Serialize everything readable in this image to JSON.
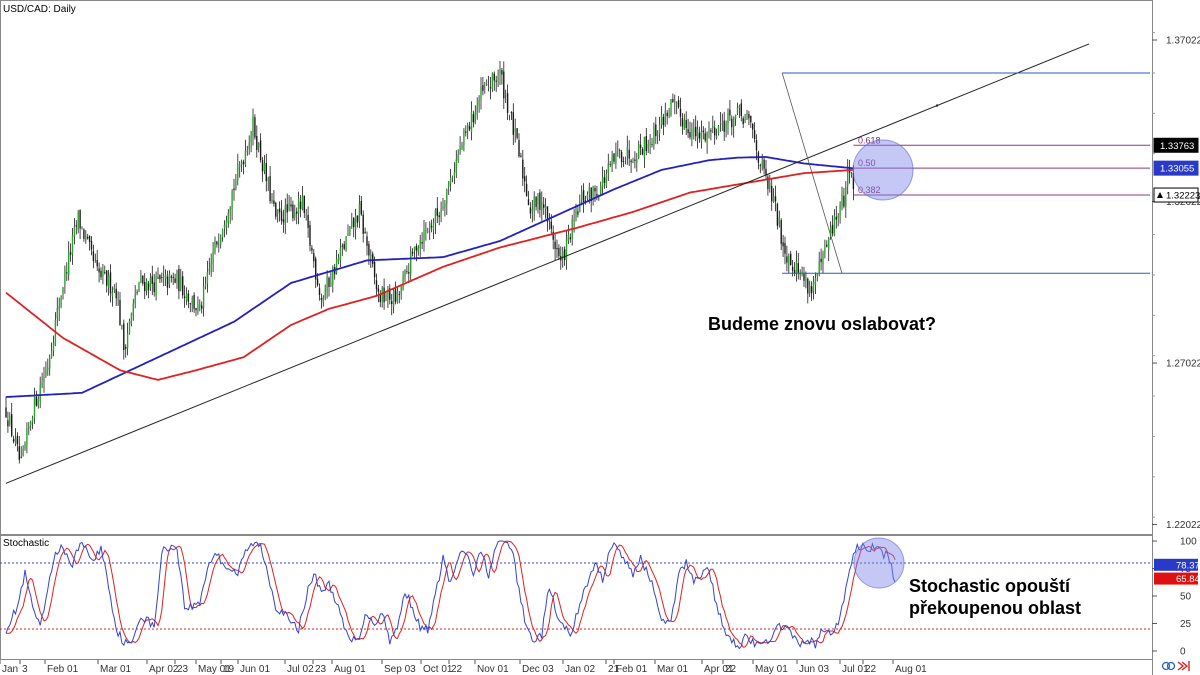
{
  "chart_data": [
    {
      "type": "candlestick",
      "title": "USD/CAD: Daily",
      "y_ticks": [
        "1.37022",
        "1.32022",
        "1.27022",
        "1.22022"
      ],
      "ylim": [
        1.2173,
        1.3826
      ],
      "x_ticks": [
        "Jan",
        "3",
        "Feb 01",
        "Mar 01",
        "Apr 02",
        "23",
        "May 01",
        "19",
        "Jun 01",
        "Jul 02",
        "23",
        "Aug 01",
        "Sep 03",
        "Oct 01",
        "22",
        "Nov 01",
        "Dec 03",
        "Jan 02",
        "21",
        "Feb 01",
        "Mar 01",
        "Apr 01",
        "22",
        "May 01",
        "Jun 03",
        "Jul 01",
        "22",
        "Aug 01"
      ],
      "price_anchors": [
        [
          0,
          1.2558
        ],
        [
          8,
          1.238
        ],
        [
          14,
          1.256
        ],
        [
          22,
          1.27
        ],
        [
          30,
          1.295
        ],
        [
          38,
          1.315
        ],
        [
          48,
          1.298
        ],
        [
          58,
          1.293
        ],
        [
          62,
          1.275
        ],
        [
          70,
          1.295
        ],
        [
          80,
          1.295
        ],
        [
          90,
          1.296
        ],
        [
          102,
          1.286
        ],
        [
          110,
          1.306
        ],
        [
          120,
          1.325
        ],
        [
          130,
          1.344
        ],
        [
          142,
          1.315
        ],
        [
          156,
          1.319
        ],
        [
          166,
          1.29
        ],
        [
          176,
          1.304
        ],
        [
          186,
          1.317
        ],
        [
          196,
          1.291
        ],
        [
          206,
          1.29
        ],
        [
          216,
          1.307
        ],
        [
          228,
          1.317
        ],
        [
          240,
          1.338
        ],
        [
          250,
          1.353
        ],
        [
          260,
          1.36
        ],
        [
          268,
          1.34
        ],
        [
          276,
          1.318
        ],
        [
          282,
          1.321
        ],
        [
          292,
          1.301
        ],
        [
          303,
          1.321
        ],
        [
          312,
          1.324
        ],
        [
          322,
          1.335
        ],
        [
          330,
          1.335
        ],
        [
          340,
          1.34
        ],
        [
          350,
          1.35
        ],
        [
          364,
          1.34
        ],
        [
          376,
          1.344
        ],
        [
          386,
          1.347
        ],
        [
          392,
          1.344
        ],
        [
          398,
          1.33
        ],
        [
          404,
          1.32
        ],
        [
          410,
          1.305
        ],
        [
          418,
          1.298
        ],
        [
          424,
          1.293
        ],
        [
          430,
          1.302
        ],
        [
          436,
          1.314
        ],
        [
          441,
          1.321
        ],
        [
          444,
          1.332
        ],
        [
          446,
          1.325
        ]
      ],
      "moving_averages": [
        {
          "color": "#2222bb",
          "anchors": [
            [
              0,
              1.2597
            ],
            [
              40,
              1.261
            ],
            [
              80,
              1.272
            ],
            [
              120,
              1.283
            ],
            [
              150,
              1.295
            ],
            [
              190,
              1.302
            ],
            [
              230,
              1.303
            ],
            [
              260,
              1.308
            ],
            [
              290,
              1.316
            ],
            [
              320,
              1.324
            ],
            [
              345,
              1.33
            ],
            [
              370,
              1.333
            ],
            [
              385,
              1.3338
            ],
            [
              400,
              1.334
            ],
            [
              420,
              1.332
            ],
            [
              446,
              1.3305
            ]
          ]
        },
        {
          "color": "#dd2222",
          "anchors": [
            [
              0,
              1.292
            ],
            [
              30,
              1.278
            ],
            [
              60,
              1.268
            ],
            [
              80,
              1.265
            ],
            [
              100,
              1.268
            ],
            [
              125,
              1.272
            ],
            [
              150,
              1.282
            ],
            [
              170,
              1.287
            ],
            [
              195,
              1.291
            ],
            [
              230,
              1.3
            ],
            [
              260,
              1.306
            ],
            [
              300,
              1.312
            ],
            [
              330,
              1.317
            ],
            [
              360,
              1.323
            ],
            [
              390,
              1.326
            ],
            [
              420,
              1.329
            ],
            [
              446,
              1.33
            ]
          ]
        }
      ],
      "trendline": {
        "from": [
          0,
          1.233
        ],
        "to": [
          570,
          1.369
        ]
      },
      "fib_high": 1.36,
      "fib_low": 1.298,
      "fib_levels": [
        {
          "label": "0.618",
          "value": 1.33763
        },
        {
          "label": "0.50",
          "value": 1.33055
        },
        {
          "label": "0.382",
          "value": 1.32223
        }
      ],
      "price_badges": [
        {
          "text": "1.33763",
          "value": 1.33763,
          "color": "#000000"
        },
        {
          "text": "1.33055",
          "value": 1.33055,
          "color": "#2a3ac8"
        },
        {
          "text": "1.32223",
          "value": 1.32223,
          "color": "#ffffff"
        }
      ],
      "annotation": "Budeme znovu oslabovat?"
    },
    {
      "type": "line",
      "title": "Stochastic",
      "ylim": [
        0,
        100
      ],
      "y_ticks": [
        "100",
        "75",
        "50",
        "25",
        "0"
      ],
      "levels": [
        80,
        20
      ],
      "k_anchors": [
        [
          0,
          20
        ],
        [
          6,
          40
        ],
        [
          10,
          70
        ],
        [
          14,
          40
        ],
        [
          18,
          20
        ],
        [
          22,
          55
        ],
        [
          26,
          90
        ],
        [
          30,
          95
        ],
        [
          34,
          75
        ],
        [
          38,
          95
        ],
        [
          42,
          95
        ],
        [
          46,
          80
        ],
        [
          50,
          95
        ],
        [
          54,
          60
        ],
        [
          58,
          20
        ],
        [
          62,
          8
        ],
        [
          66,
          5
        ],
        [
          70,
          30
        ],
        [
          74,
          30
        ],
        [
          78,
          20
        ],
        [
          82,
          90
        ],
        [
          86,
          95
        ],
        [
          90,
          95
        ],
        [
          94,
          40
        ],
        [
          98,
          40
        ],
        [
          102,
          45
        ],
        [
          106,
          75
        ],
        [
          110,
          90
        ],
        [
          114,
          80
        ],
        [
          118,
          75
        ],
        [
          122,
          70
        ],
        [
          126,
          90
        ],
        [
          130,
          98
        ],
        [
          134,
          95
        ],
        [
          138,
          70
        ],
        [
          142,
          40
        ],
        [
          146,
          35
        ],
        [
          150,
          25
        ],
        [
          154,
          20
        ],
        [
          158,
          50
        ],
        [
          162,
          70
        ],
        [
          166,
          55
        ],
        [
          170,
          60
        ],
        [
          174,
          45
        ],
        [
          178,
          20
        ],
        [
          182,
          8
        ],
        [
          186,
          15
        ],
        [
          190,
          35
        ],
        [
          194,
          25
        ],
        [
          198,
          35
        ],
        [
          202,
          10
        ],
        [
          206,
          20
        ],
        [
          210,
          55
        ],
        [
          214,
          40
        ],
        [
          218,
          20
        ],
        [
          222,
          20
        ],
        [
          226,
          50
        ],
        [
          230,
          85
        ],
        [
          234,
          60
        ],
        [
          238,
          85
        ],
        [
          242,
          90
        ],
        [
          246,
          70
        ],
        [
          250,
          90
        ],
        [
          254,
          70
        ],
        [
          258,
          95
        ],
        [
          262,
          100
        ],
        [
          266,
          95
        ],
        [
          270,
          55
        ],
        [
          274,
          20
        ],
        [
          278,
          10
        ],
        [
          282,
          15
        ],
        [
          286,
          60
        ],
        [
          290,
          30
        ],
        [
          294,
          20
        ],
        [
          298,
          15
        ],
        [
          302,
          45
        ],
        [
          306,
          60
        ],
        [
          310,
          80
        ],
        [
          314,
          65
        ],
        [
          318,
          95
        ],
        [
          322,
          95
        ],
        [
          326,
          80
        ],
        [
          330,
          70
        ],
        [
          334,
          85
        ],
        [
          338,
          70
        ],
        [
          342,
          50
        ],
        [
          346,
          25
        ],
        [
          350,
          25
        ],
        [
          354,
          70
        ],
        [
          358,
          80
        ],
        [
          362,
          65
        ],
        [
          366,
          70
        ],
        [
          370,
          75
        ],
        [
          374,
          40
        ],
        [
          378,
          20
        ],
        [
          382,
          10
        ],
        [
          386,
          5
        ],
        [
          390,
          15
        ],
        [
          394,
          5
        ],
        [
          398,
          5
        ],
        [
          402,
          12
        ],
        [
          406,
          20
        ],
        [
          410,
          25
        ],
        [
          414,
          12
        ],
        [
          418,
          5
        ],
        [
          422,
          12
        ],
        [
          426,
          5
        ],
        [
          430,
          20
        ],
        [
          434,
          15
        ],
        [
          438,
          25
        ],
        [
          442,
          55
        ],
        [
          446,
          90
        ],
        [
          450,
          96
        ],
        [
          454,
          92
        ],
        [
          458,
          95
        ],
        [
          462,
          88
        ],
        [
          465,
          84
        ],
        [
          468,
          62
        ]
      ],
      "d_lag": 2,
      "badges": [
        {
          "text": "78.37",
          "value": 78.37,
          "color": "#2a3ac8"
        },
        {
          "text": "65.84",
          "value": 65.84,
          "color": "#dd1111"
        }
      ],
      "annotation": [
        "Stochastic opouští",
        "překoupenou oblast"
      ]
    }
  ]
}
